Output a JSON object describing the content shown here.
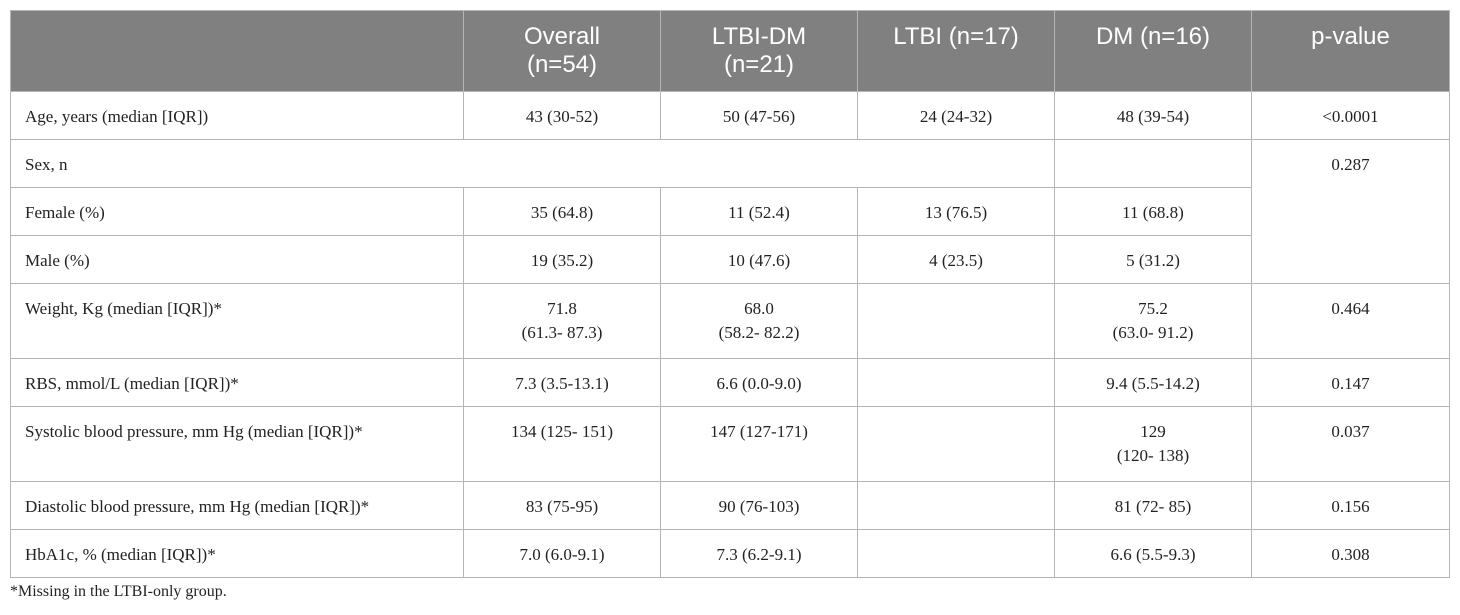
{
  "table": {
    "headers": [
      "",
      "Overall",
      "(n=54)",
      "LTBI-DM",
      "(n=21)",
      "LTBI (n=17)",
      "DM (n=16)",
      "p-value"
    ],
    "rows": {
      "age": {
        "label": "Age, years (median [IQR])",
        "overall": "43 (30-52)",
        "ltbi_dm": "50 (47-56)",
        "ltbi": "24 (24-32)",
        "dm": "48 (39-54)",
        "p": "<0.0001"
      },
      "sex": {
        "label": "Sex, n",
        "p": "0.287"
      },
      "female": {
        "label": "Female (%)",
        "overall": "35 (64.8)",
        "ltbi_dm": "11 (52.4)",
        "ltbi": "13 (76.5)",
        "dm": "11 (68.8)"
      },
      "male": {
        "label": "Male (%)",
        "overall": "19 (35.2)",
        "ltbi_dm": "10 (47.6)",
        "ltbi": "4 (23.5)",
        "dm": "5 (31.2)"
      },
      "weight": {
        "label": "Weight, Kg (median [IQR])*",
        "overall_1": "71.8",
        "overall_2": "(61.3- 87.3)",
        "ltbi_dm_1": "68.0",
        "ltbi_dm_2": "(58.2- 82.2)",
        "ltbi": "",
        "dm_1": "75.2",
        "dm_2": "(63.0- 91.2)",
        "p": "0.464"
      },
      "rbs": {
        "label": "RBS, mmol/L (median [IQR])*",
        "overall": "7.3 (3.5-13.1)",
        "ltbi_dm": "6.6 (0.0-9.0)",
        "ltbi": "",
        "dm": "9.4 (5.5-14.2)",
        "p": "0.147"
      },
      "systolic": {
        "label": "Systolic blood pressure, mm Hg (median [IQR])*",
        "overall": "134 (125- 151)",
        "ltbi_dm": "147 (127-171)",
        "ltbi": "",
        "dm_1": "129",
        "dm_2": "(120- 138)",
        "p": "0.037"
      },
      "diastolic": {
        "label": "Diastolic blood pressure, mm Hg (median [IQR])*",
        "overall": "83 (75-95)",
        "ltbi_dm": "90 (76-103)",
        "ltbi": "",
        "dm": "81 (72- 85)",
        "p": "0.156"
      },
      "hba1c": {
        "label": "HbA1c, % (median [IQR])*",
        "overall": "7.0 (6.0-9.1)",
        "ltbi_dm": "7.3 (6.2-9.1)",
        "ltbi": "",
        "dm": "6.6 (5.5-9.3)",
        "p": "0.308"
      }
    }
  },
  "footnote": "*Missing in the LTBI-only group."
}
